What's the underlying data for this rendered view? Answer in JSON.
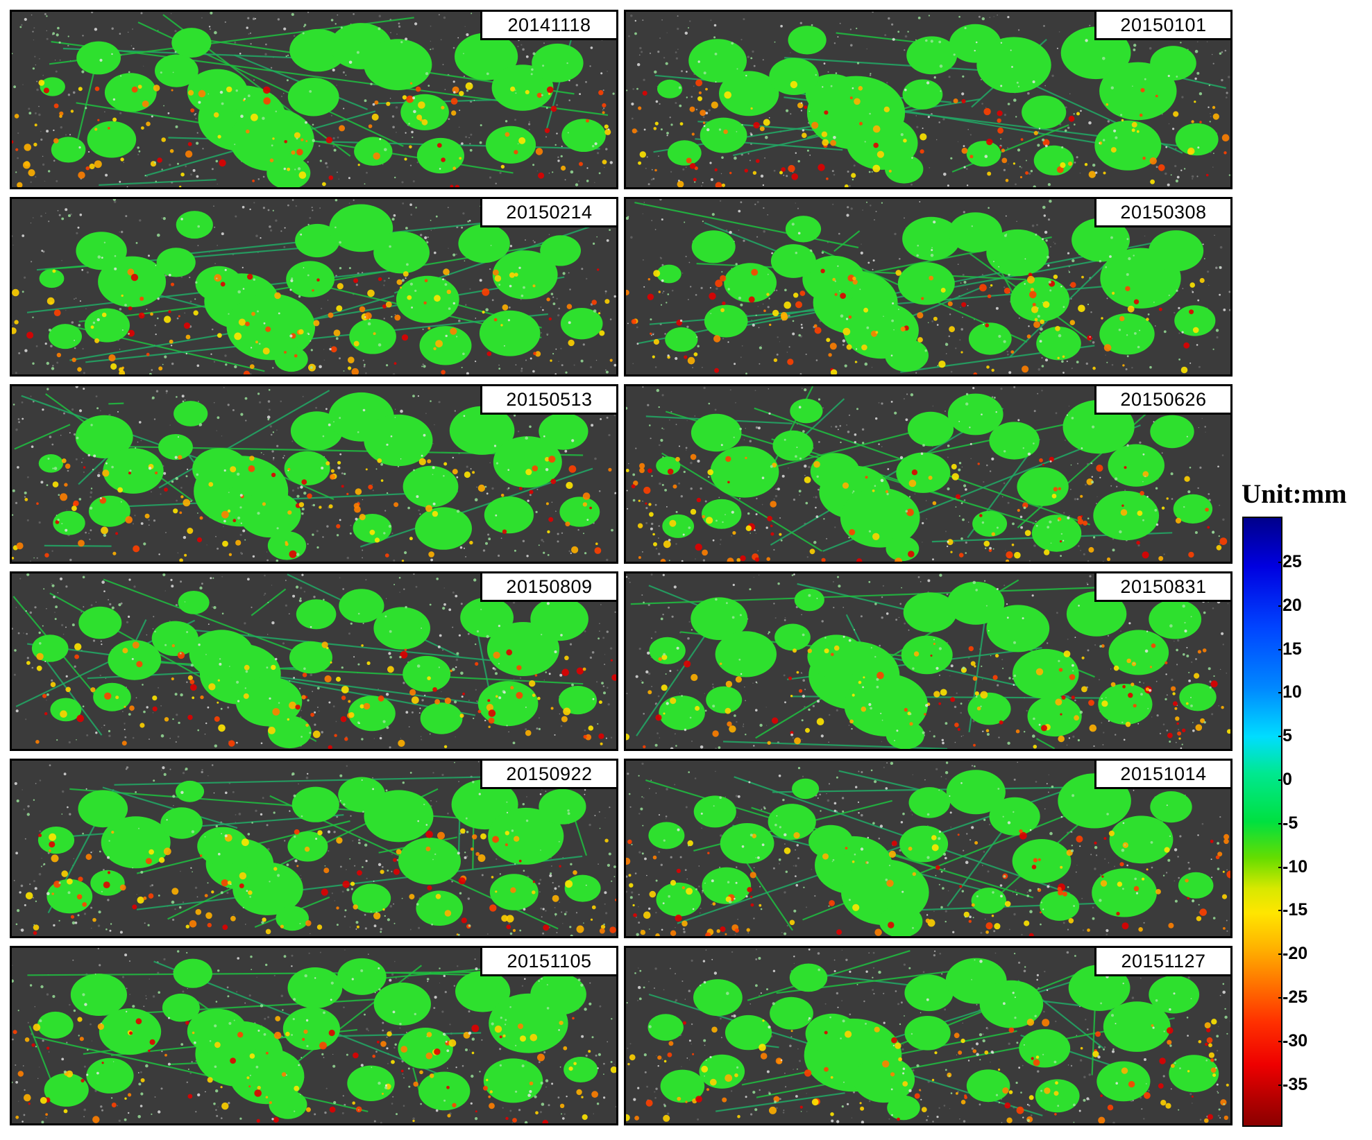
{
  "panels": [
    {
      "date": "20141118"
    },
    {
      "date": "20150101"
    },
    {
      "date": "20150214"
    },
    {
      "date": "20150308"
    },
    {
      "date": "20150513"
    },
    {
      "date": "20150626"
    },
    {
      "date": "20150809"
    },
    {
      "date": "20150831"
    },
    {
      "date": "20150922"
    },
    {
      "date": "20151014"
    },
    {
      "date": "20151105"
    },
    {
      "date": "20151127"
    }
  ],
  "legend": {
    "title": "Unit:mm",
    "ticks": [
      "25",
      "20",
      "15",
      "10",
      "5",
      "0",
      "-5",
      "-10",
      "-15",
      "-20",
      "-25",
      "-30",
      "-35"
    ],
    "colors": [
      "#00008b",
      "#0000e0",
      "#0088ff",
      "#00ddff",
      "#00e040",
      "#ffe600",
      "#ff7000",
      "#ee0000",
      "#8b0000"
    ]
  }
}
